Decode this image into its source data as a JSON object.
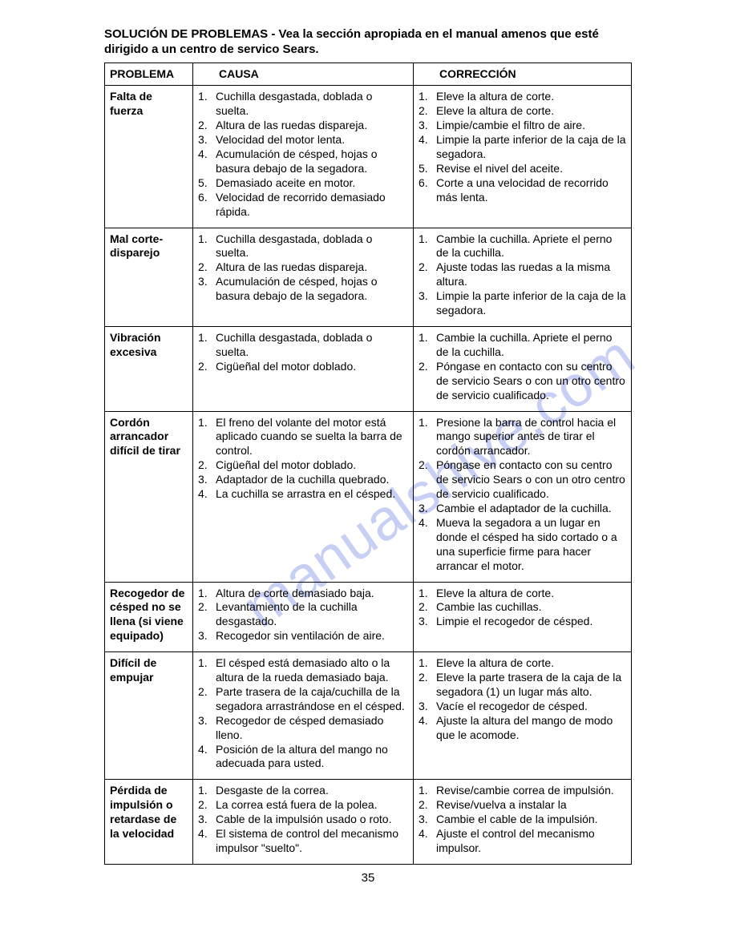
{
  "title": "SOLUCIÓN DE PROBLEMAS - Vea la sección apropiada en el manual amenos que esté dirigido a un centro de servico Sears.",
  "headers": {
    "problem": "PROBLEMA",
    "cause": "CAUSA",
    "correction": "CORRECCIÓN"
  },
  "page_number": "35",
  "watermark": "manualshive.com",
  "rows": [
    {
      "problem": "Falta de fuerza",
      "causes": [
        "Cuchilla desgastada, doblada o suelta.",
        "Altura de las ruedas dispareja.",
        "Velocidad del motor lenta.",
        "Acumulación de césped, hojas o basura debajo de la segadora.",
        "Demasiado aceite en motor.",
        "Velocidad de recorrido demasiado rápida."
      ],
      "corrections": [
        "Eleve la altura de corte.",
        "Eleve la altura de corte.",
        "Limpie/cambie el filtro de aire.",
        "Limpie la parte inferior de la caja de la segadora.",
        "Revise el nivel del aceite.",
        "Corte a una velocidad de recorrido más lenta."
      ]
    },
    {
      "problem": "Mal corte-disparejo",
      "causes": [
        "Cuchilla desgastada, doblada o suelta.",
        "Altura de las ruedas dispareja.",
        "Acumulación de césped, hojas o basura debajo de la segadora."
      ],
      "corrections": [
        "Cambie la cuchilla. Apriete el perno de la cuchilla.",
        "Ajuste todas las ruedas a la misma altura.",
        "Limpie la parte inferior de la caja de la segadora."
      ]
    },
    {
      "problem": "Vibración excesiva",
      "causes": [
        "Cuchilla desgastada, doblada o suelta.",
        "Cigüeñal del motor doblado."
      ],
      "corrections": [
        "Cambie la cuchilla. Apriete el perno de la cuchilla.",
        "Póngase en contacto con su centro de servicio Sears o con un otro centro de servicio cualificado."
      ]
    },
    {
      "problem": "Cordón arrancador difícil de tirar",
      "causes": [
        "El freno del volante del motor está aplicado cuando se suelta la barra de control.",
        "Cigüeñal del motor doblado.",
        "Adaptador de la cuchilla quebrado.",
        "La cuchilla se arrastra en el césped."
      ],
      "corrections": [
        "Presione la barra de control hacia el mango superior antes de tirar el cordón arrancador.",
        "Póngase en contacto con su centro de servicio Sears o con un otro centro de servicio cualificado.",
        "Cambie el adaptador de la cuchilla.",
        "Mueva la segadora a un lugar en donde el césped ha sido cortado o a una superficie firme para hacer arrancar el motor."
      ]
    },
    {
      "problem": "Recogedor de césped no se llena (si viene equipado)",
      "causes": [
        "Altura de corte demasiado baja.",
        "Levantamiento de la cuchilla desgastado.",
        "Recogedor sin ventilación de aire."
      ],
      "corrections": [
        "Eleve la altura de corte.",
        "Cambie las cuchillas.",
        "Limpie el recogedor de césped."
      ]
    },
    {
      "problem": "Difícil de empujar",
      "causes": [
        "El césped está demasiado alto o la altura de la rueda demasiado baja.",
        "Parte trasera de la caja/cuchilla de la segadora arrastrándose en el césped.",
        "Recogedor de césped demasiado lleno.",
        "Posición de la altura del mango no adecuada para usted."
      ],
      "corrections": [
        "Eleve la altura de corte.",
        "Eleve la parte trasera de la caja de la segadora (1) un lugar más alto.",
        "Vacíe el recogedor de césped.",
        "Ajuste la altura del mango de modo que le acomode."
      ]
    },
    {
      "problem": "Pérdida de impulsión o retardase de la velocidad",
      "causes": [
        "Desgaste de la correa.",
        "La correa está fuera de la polea.",
        "Cable de la impulsión usado o roto.",
        "El sistema de control del mecanismo impulsor \"suelto\"."
      ],
      "corrections": [
        "Revise/cambie correa de impulsión.",
        "Revise/vuelva a instalar la",
        "Cambie  el cable de la impulsión.",
        "Ajuste el control del mecanismo impulsor."
      ]
    }
  ]
}
